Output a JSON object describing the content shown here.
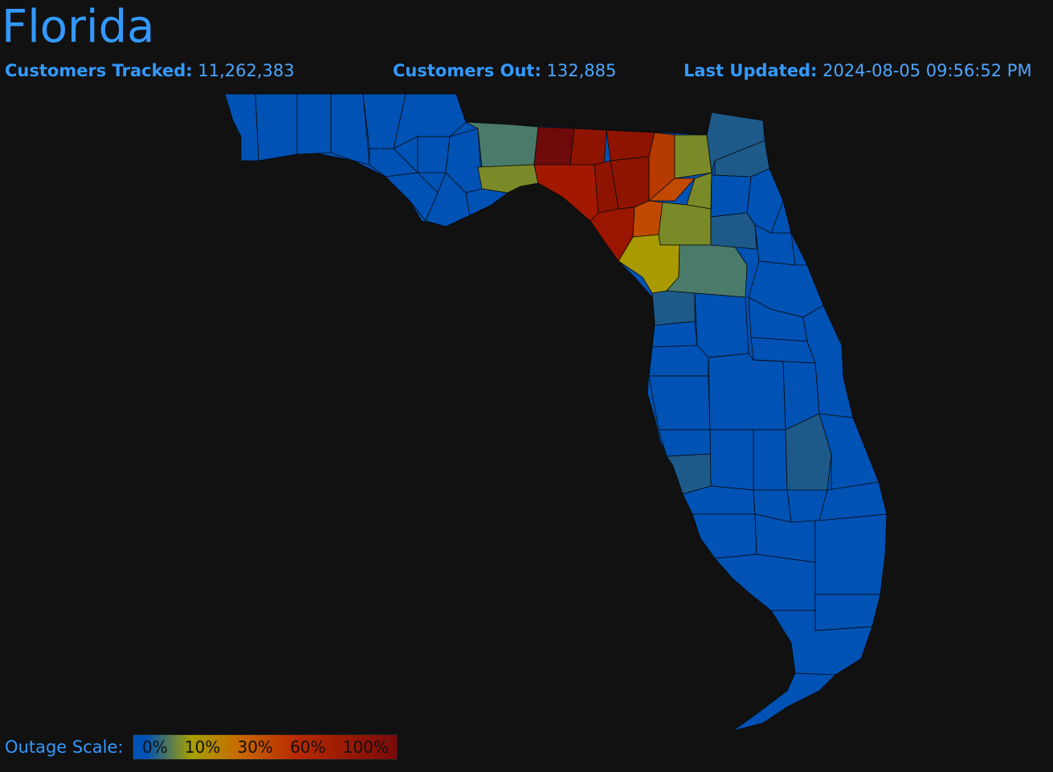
{
  "header": {
    "title": "Florida",
    "customers_tracked_label": "Customers Tracked:",
    "customers_tracked_value": "11,262,383",
    "customers_out_label": "Customers Out:",
    "customers_out_value": "132,885",
    "last_updated_label": "Last Updated:",
    "last_updated_value": "2024-08-05 09:56:52 PM"
  },
  "legend": {
    "label": "Outage Scale:",
    "ticks": [
      "0%",
      "10%",
      "30%",
      "60%",
      "100%"
    ]
  },
  "colors": {
    "low": "#0052b4",
    "slight": "#1d5a8a",
    "teal_gray": "#4a7a6a",
    "olive": "#7a8a28",
    "yellow": "#a89a00",
    "orange": "#c24a00",
    "red": "#8e1400",
    "dark_red": "#6e0a0a"
  }
}
